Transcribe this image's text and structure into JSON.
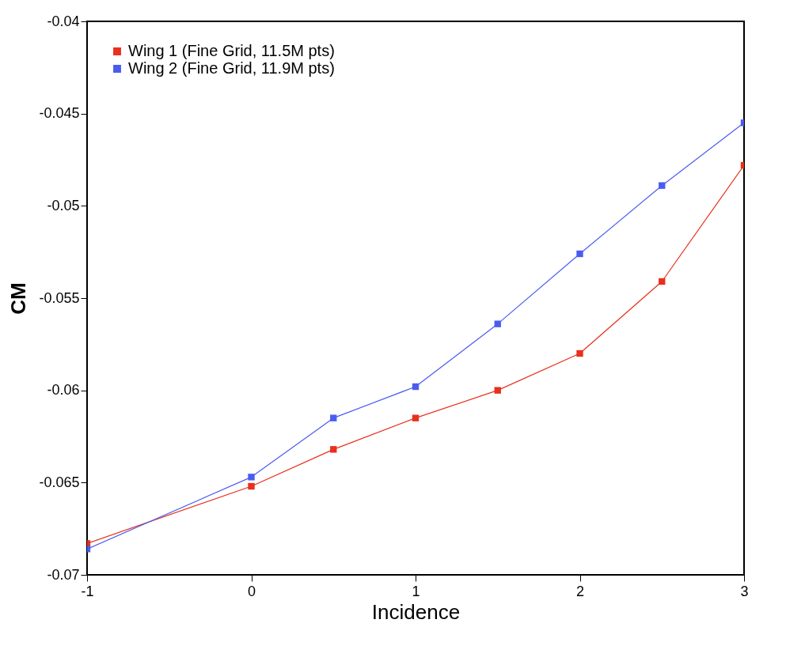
{
  "chart_data": {
    "type": "line",
    "xlabel": "Incidence",
    "ylabel": "CM",
    "x": [
      -1,
      0,
      0.5,
      1,
      1.5,
      2,
      2.5,
      3
    ],
    "series": [
      {
        "name": "Wing 1 (Fine Grid, 11.5M pts)",
        "color": "#e8301c",
        "values": [
          -0.0683,
          -0.0652,
          -0.0632,
          -0.0615,
          -0.06,
          -0.058,
          -0.0541,
          -0.0478
        ]
      },
      {
        "name": "Wing 2 (Fine Grid, 11.9M pts)",
        "color": "#4a5cf0",
        "values": [
          -0.0686,
          -0.0647,
          -0.0615,
          -0.0598,
          -0.0564,
          -0.0526,
          -0.0489,
          -0.0455
        ]
      }
    ],
    "xlim": [
      -1,
      3
    ],
    "xticks": [
      -1,
      0,
      1,
      2,
      3
    ],
    "ylim": [
      -0.07,
      -0.04
    ],
    "yticks": [
      -0.07,
      -0.065,
      -0.06,
      -0.055,
      -0.05,
      -0.045,
      -0.04
    ],
    "grid": false,
    "legend": "top left",
    "marker": "square",
    "line_style": "solid"
  }
}
